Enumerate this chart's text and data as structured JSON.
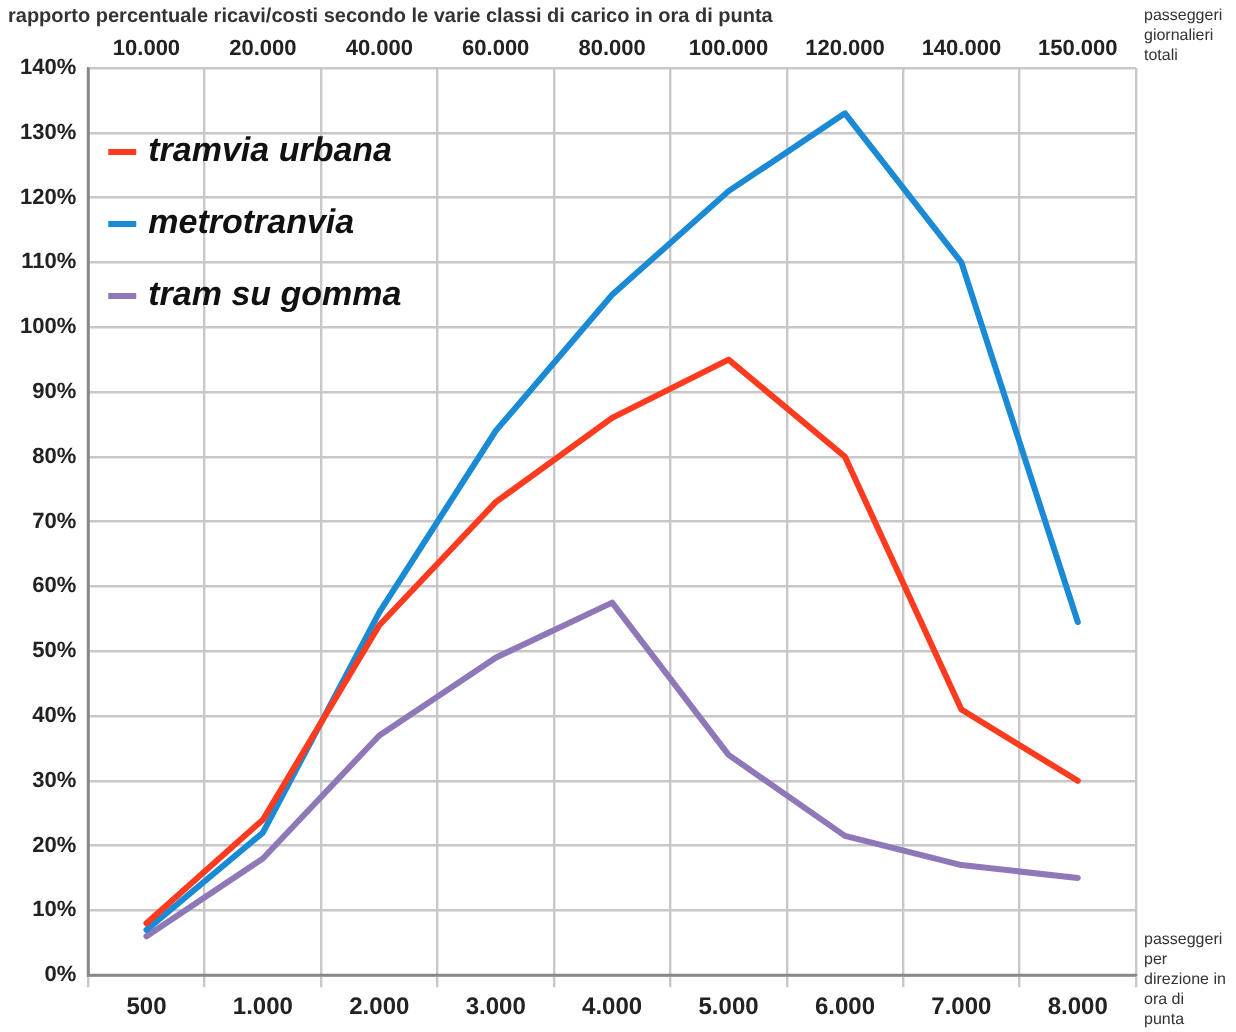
{
  "chart_data": {
    "type": "line",
    "title": "rapporto percentuale ricavi/costi secondo le varie classi di carico in ora di punta",
    "xlabel": "passeggeri per direzione in ora di punta",
    "x2label": "passeggeri giornalieri totali",
    "categories": [
      "500",
      "1.000",
      "2.000",
      "3.000",
      "4.000",
      "5.000",
      "6.000",
      "7.000",
      "8.000"
    ],
    "annotations": [
      "10.000",
      "20.000",
      "40.000",
      "60.000",
      "80.000",
      "100.000",
      "120.000",
      "140.000",
      "150.000"
    ],
    "series": [
      {
        "name": "tramvia urbana",
        "color": "#ff3b1f",
        "values": [
          8,
          24,
          54,
          73,
          86,
          95,
          80,
          41,
          30
        ]
      },
      {
        "name": "metrotranvia",
        "color": "#1a8ad4",
        "values": [
          7,
          22,
          56,
          84,
          105,
          121,
          133,
          110,
          54.5
        ]
      },
      {
        "name": "tram su gomma",
        "color": "#8e78b8",
        "values": [
          6,
          18,
          37,
          49,
          57.5,
          34,
          21.5,
          17,
          15
        ]
      }
    ],
    "ylim": [
      0,
      140
    ],
    "yticks": [
      {
        "value": 0,
        "label": "0%"
      },
      {
        "value": 10,
        "label": "10%"
      },
      {
        "value": 20,
        "label": "20%"
      },
      {
        "value": 30,
        "label": "30%"
      },
      {
        "value": 40,
        "label": "40%"
      },
      {
        "value": 50,
        "label": "50%"
      },
      {
        "value": 60,
        "label": "60%"
      },
      {
        "value": 70,
        "label": "70%"
      },
      {
        "value": 80,
        "label": "80%"
      },
      {
        "value": 90,
        "label": "90%"
      },
      {
        "value": 100,
        "label": "100%"
      },
      {
        "value": 110,
        "label": "110%"
      },
      {
        "value": 120,
        "label": "120%"
      },
      {
        "value": 130,
        "label": "130%"
      },
      {
        "value": 140,
        "label": "140%"
      }
    ],
    "grid": true,
    "legend": "top left"
  }
}
